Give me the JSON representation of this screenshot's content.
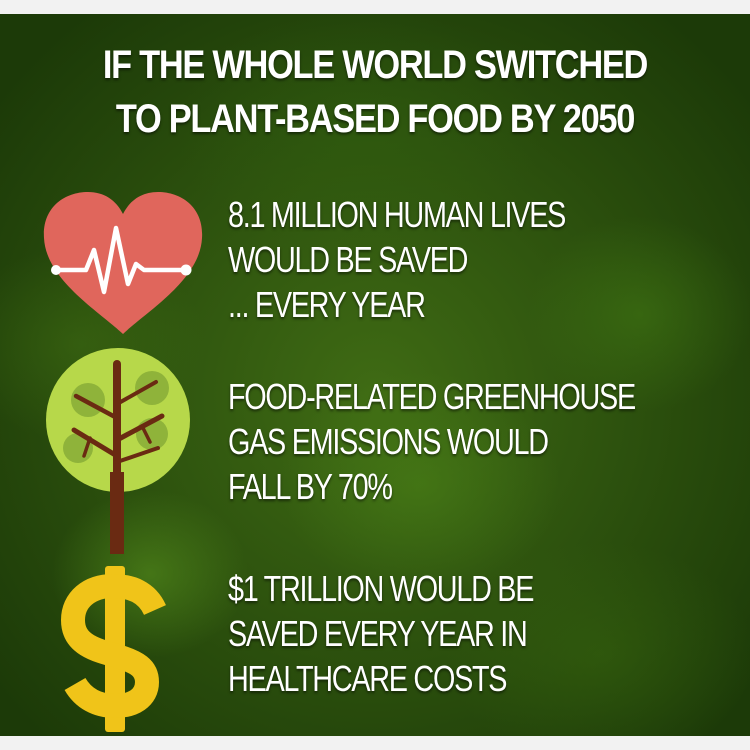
{
  "headline": {
    "line1": "IF THE WHOLE WORLD SWITCHED",
    "line2": "TO PLANT-BASED FOOD BY 2050"
  },
  "facts": [
    {
      "icon": "heart-pulse-icon",
      "lines": [
        "8.1 MILLION HUMAN LIVES",
        "WOULD BE SAVED",
        "... EVERY YEAR"
      ]
    },
    {
      "icon": "tree-icon",
      "lines": [
        "FOOD-RELATED GREENHOUSE",
        "GAS EMISSIONS WOULD",
        "FALL BY 70%"
      ]
    },
    {
      "icon": "dollar-sign-icon",
      "lines": [
        "$1 TRILLION WOULD BE",
        "SAVED EVERY YEAR IN",
        "HEALTHCARE COSTS"
      ]
    }
  ],
  "colors": {
    "background": "#2c5210",
    "text": "#ffffff",
    "heart": "#e0665c",
    "tree_canopy": "#b7d84a",
    "tree_trunk": "#6a2a12",
    "dollar": "#f0c419"
  }
}
